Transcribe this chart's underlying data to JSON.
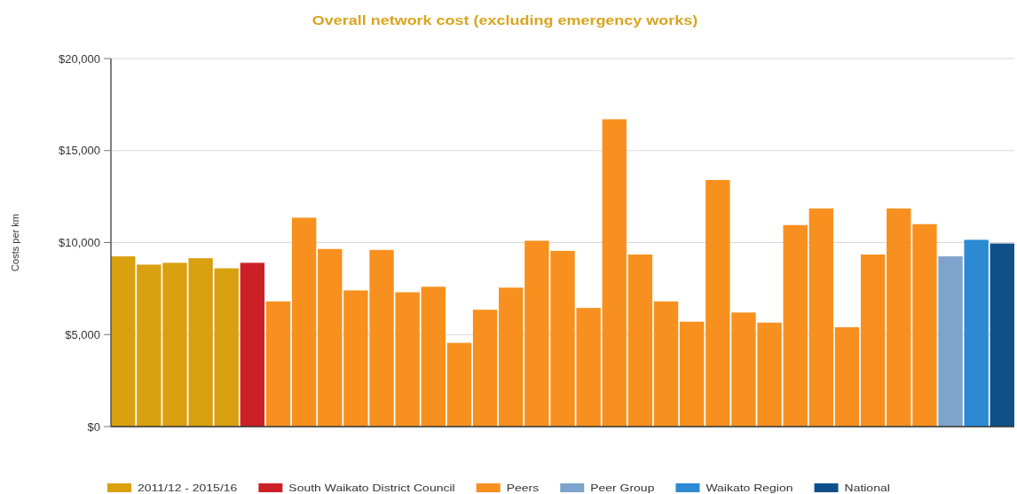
{
  "chart_data": {
    "type": "bar",
    "title": "Overall network cost (excluding emergency works)",
    "ylabel": "Costs per km",
    "categories": [
      null,
      null,
      null,
      null,
      null,
      null,
      null,
      null,
      null,
      null,
      null,
      null,
      null,
      null,
      null,
      null,
      null,
      null,
      null,
      null,
      null,
      null,
      null,
      null,
      null,
      null,
      null,
      null,
      null,
      null,
      null,
      null,
      null,
      null,
      null
    ],
    "stacked": true,
    "series": [
      {
        "name": "2011/12 - 2015/16",
        "color": "#d9a00f",
        "values": [
          9250,
          8800,
          8900,
          9150,
          8600,
          null,
          null,
          null,
          null,
          null,
          null,
          null,
          null,
          null,
          null,
          null,
          null,
          null,
          null,
          null,
          null,
          null,
          null,
          null,
          null,
          null,
          null,
          null,
          null,
          null,
          null,
          null,
          null,
          null,
          null
        ]
      },
      {
        "name": "South Waikato District Council",
        "color": "#cc2027",
        "values": [
          null,
          null,
          null,
          null,
          null,
          8900,
          null,
          null,
          null,
          null,
          null,
          null,
          null,
          null,
          null,
          null,
          null,
          null,
          null,
          null,
          null,
          null,
          null,
          null,
          null,
          null,
          null,
          null,
          null,
          null,
          null,
          null,
          null,
          null,
          null
        ]
      },
      {
        "name": "Peers",
        "color": "#f7901e",
        "values": [
          null,
          null,
          null,
          null,
          null,
          null,
          6800,
          11350,
          9650,
          7400,
          9600,
          7300,
          7600,
          4550,
          6350,
          7550,
          10100,
          9550,
          6450,
          16700,
          9350,
          6800,
          5700,
          13400,
          6200,
          5650,
          10950,
          11850,
          5400,
          9350,
          11850,
          11000,
          null,
          null,
          null
        ]
      },
      {
        "name": "Peer Group",
        "color": "#7ea3cc",
        "values": [
          null,
          null,
          null,
          null,
          null,
          null,
          null,
          null,
          null,
          null,
          null,
          null,
          null,
          null,
          null,
          null,
          null,
          null,
          null,
          null,
          null,
          null,
          null,
          null,
          null,
          null,
          null,
          null,
          null,
          null,
          null,
          null,
          9250,
          null,
          null
        ]
      },
      {
        "name": "Waikato Region",
        "color": "#2b8ad3",
        "values": [
          null,
          null,
          null,
          null,
          null,
          null,
          null,
          null,
          null,
          null,
          null,
          null,
          null,
          null,
          null,
          null,
          null,
          null,
          null,
          null,
          null,
          null,
          null,
          null,
          null,
          null,
          null,
          null,
          null,
          null,
          null,
          null,
          null,
          10150,
          null
        ]
      },
      {
        "name": "National",
        "color": "#0f508a",
        "values": [
          null,
          null,
          null,
          null,
          null,
          null,
          null,
          null,
          null,
          null,
          null,
          null,
          null,
          null,
          null,
          null,
          null,
          null,
          null,
          null,
          null,
          null,
          null,
          null,
          null,
          null,
          null,
          null,
          null,
          null,
          null,
          null,
          null,
          null,
          9950
        ]
      }
    ],
    "ylim": [
      0,
      20000
    ],
    "yticks": [
      {
        "value": 0,
        "label": "$0"
      },
      {
        "value": 5000,
        "label": "$5,000"
      },
      {
        "value": 10000,
        "label": "$10,000"
      },
      {
        "value": 15000,
        "label": "$15,000"
      },
      {
        "value": 20000,
        "label": "$20,000"
      }
    ],
    "grid": "y",
    "legend": "bottom"
  }
}
